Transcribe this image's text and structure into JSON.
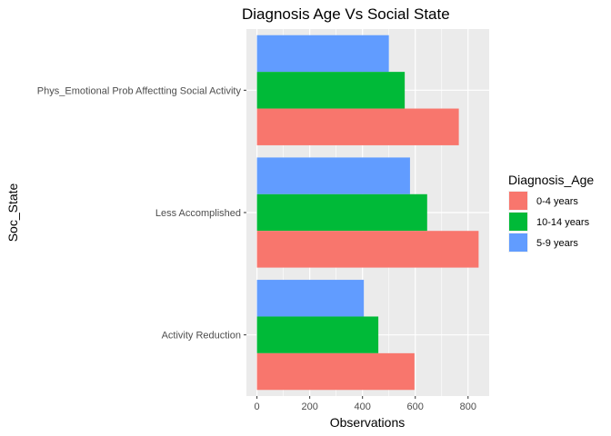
{
  "chart_data": {
    "type": "bar",
    "orientation": "horizontal",
    "title": "Diagnosis Age Vs Social State",
    "xlabel": "Observations",
    "ylabel": "Soc_State",
    "xlim": [
      -40,
      880
    ],
    "x_ticks": [
      0,
      200,
      400,
      600,
      800
    ],
    "grid": true,
    "legend_position": "right",
    "legend_title": "Diagnosis_Age",
    "categories": [
      "Phys_Emotional Prob Affectting Social Activity",
      "Less Accomplished",
      "Activity Reduction"
    ],
    "series": [
      {
        "name": "5-9 years",
        "color": "#619CFF",
        "values": [
          500,
          580,
          405
        ]
      },
      {
        "name": "10-14 years",
        "color": "#00BA38",
        "values": [
          560,
          645,
          460
        ]
      },
      {
        "name": "0-4 years",
        "color": "#F8766D",
        "values": [
          765,
          840,
          597
        ]
      }
    ],
    "legend_order": [
      "0-4 years",
      "10-14 years",
      "5-9 years"
    ],
    "panel_background": "#EBEBEB",
    "grid_color": "#FFFFFF"
  }
}
